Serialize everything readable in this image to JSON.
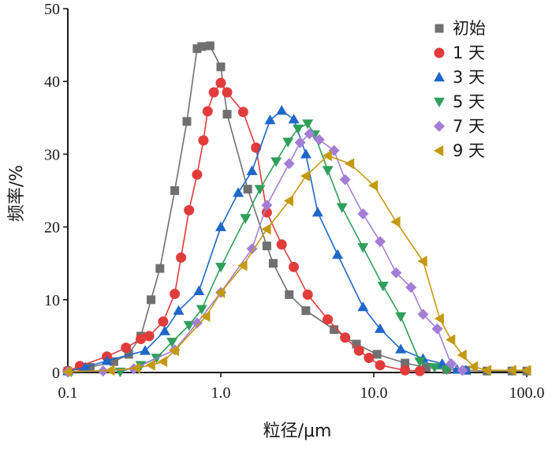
{
  "chart_data": {
    "type": "line",
    "xscale": "log",
    "xlabel": "粒径/μm",
    "ylabel": "频率/%",
    "xlim": [
      0.1,
      100
    ],
    "ylim": [
      0,
      50
    ],
    "xticks": [
      {
        "value": 0.1,
        "label": "0.1"
      },
      {
        "value": 1,
        "label": "1.0"
      },
      {
        "value": 10,
        "label": "10.0"
      },
      {
        "value": 100,
        "label": "100.0"
      }
    ],
    "yticks": [
      {
        "value": 0,
        "label": "0"
      },
      {
        "value": 10,
        "label": "10"
      },
      {
        "value": 20,
        "label": "20"
      },
      {
        "value": 30,
        "label": "30"
      },
      {
        "value": 40,
        "label": "40"
      },
      {
        "value": 50,
        "label": "50"
      }
    ],
    "grid": false,
    "legend_position": "top-right",
    "series": [
      {
        "name": "初始",
        "marker": "square",
        "color": "#707070",
        "points": [
          [
            0.1,
            0.2
          ],
          [
            0.14,
            0.7
          ],
          [
            0.2,
            1.5
          ],
          [
            0.25,
            2.5
          ],
          [
            0.3,
            5
          ],
          [
            0.35,
            10
          ],
          [
            0.4,
            14.3
          ],
          [
            0.5,
            25
          ],
          [
            0.6,
            34.5
          ],
          [
            0.7,
            44.5
          ],
          [
            0.75,
            44.8
          ],
          [
            0.85,
            44.9
          ],
          [
            1.0,
            42
          ],
          [
            1.1,
            35.5
          ],
          [
            1.5,
            25.2
          ],
          [
            2.0,
            17.4
          ],
          [
            2.2,
            15
          ],
          [
            2.8,
            10.7
          ],
          [
            3.6,
            8.5
          ],
          [
            5.5,
            5.9
          ],
          [
            7.7,
            3.9
          ],
          [
            10.5,
            2.5
          ],
          [
            16,
            1.3
          ],
          [
            22,
            0.7
          ],
          [
            30,
            0.4
          ],
          [
            40,
            0.3
          ],
          [
            55,
            0.2
          ],
          [
            80,
            0.2
          ],
          [
            100,
            0.2
          ]
        ]
      },
      {
        "name": "1 天",
        "marker": "circle",
        "color": "#e23b3b",
        "points": [
          [
            0.1,
            0.2
          ],
          [
            0.12,
            0.9
          ],
          [
            0.18,
            2.2
          ],
          [
            0.24,
            3.4
          ],
          [
            0.3,
            4.6
          ],
          [
            0.34,
            5
          ],
          [
            0.42,
            7
          ],
          [
            0.5,
            10.8
          ],
          [
            0.55,
            15.8
          ],
          [
            0.62,
            22.3
          ],
          [
            0.7,
            27.2
          ],
          [
            0.77,
            31.9
          ],
          [
            0.82,
            35.9
          ],
          [
            0.9,
            38.5
          ],
          [
            1.0,
            39.8
          ],
          [
            1.1,
            38.5
          ],
          [
            1.4,
            35.8
          ],
          [
            1.7,
            30.9
          ],
          [
            2.0,
            22
          ],
          [
            2.5,
            17.6
          ],
          [
            3.0,
            14.5
          ],
          [
            3.7,
            10.7
          ],
          [
            5.0,
            7.3
          ],
          [
            6.5,
            4.8
          ],
          [
            8,
            3
          ],
          [
            9.3,
            2
          ],
          [
            11,
            1
          ],
          [
            16,
            0.3
          ],
          [
            20,
            0.2
          ]
        ]
      },
      {
        "name": "3 天",
        "marker": "triangle-up",
        "color": "#1f67c9",
        "points": [
          [
            0.1,
            0.2
          ],
          [
            0.13,
            0.7
          ],
          [
            0.18,
            1.6
          ],
          [
            0.32,
            3
          ],
          [
            0.43,
            5.7
          ],
          [
            0.53,
            8.5
          ],
          [
            0.72,
            11.2
          ],
          [
            1.0,
            20
          ],
          [
            1.3,
            24.7
          ],
          [
            1.6,
            27.7
          ],
          [
            2.1,
            34.7
          ],
          [
            2.5,
            36
          ],
          [
            3.0,
            34.8
          ],
          [
            3.6,
            30
          ],
          [
            4.3,
            22
          ],
          [
            5.8,
            16.2
          ],
          [
            8.5,
            9
          ],
          [
            11,
            6
          ],
          [
            15,
            3.2
          ],
          [
            21,
            1.9
          ],
          [
            28,
            1.2
          ],
          [
            35,
            0.4
          ],
          [
            40,
            0.3
          ]
        ]
      },
      {
        "name": "5 天",
        "marker": "triangle-down",
        "color": "#2f9f5a",
        "points": [
          [
            0.22,
            0.1
          ],
          [
            0.3,
            1
          ],
          [
            0.38,
            2
          ],
          [
            0.48,
            4.2
          ],
          [
            0.62,
            6.5
          ],
          [
            0.75,
            8.7
          ],
          [
            1.0,
            14.5
          ],
          [
            1.45,
            21.2
          ],
          [
            1.8,
            25.2
          ],
          [
            2.3,
            29
          ],
          [
            2.75,
            31.7
          ],
          [
            3.2,
            33.5
          ],
          [
            3.7,
            34.2
          ],
          [
            4.1,
            32.7
          ],
          [
            5.0,
            27.8
          ],
          [
            6.2,
            22.7
          ],
          [
            8.5,
            17.2
          ],
          [
            11.5,
            11.9
          ],
          [
            15,
            7.7
          ],
          [
            20,
            1.5
          ],
          [
            25,
            0.7
          ],
          [
            30,
            0.4
          ]
        ]
      },
      {
        "name": "7 天",
        "marker": "diamond",
        "color": "#a47ed6",
        "points": [
          [
            0.1,
            0.1
          ],
          [
            0.17,
            0.2
          ],
          [
            0.27,
            0.5
          ],
          [
            0.5,
            3.1
          ],
          [
            0.7,
            6.8
          ],
          [
            1.0,
            11
          ],
          [
            1.6,
            17
          ],
          [
            2.0,
            23
          ],
          [
            2.8,
            28.7
          ],
          [
            3.3,
            31.6
          ],
          [
            3.8,
            32.8
          ],
          [
            4.4,
            32
          ],
          [
            5.5,
            30.5
          ],
          [
            6.5,
            26.5
          ],
          [
            8.5,
            21.8
          ],
          [
            11,
            18
          ],
          [
            14,
            13.7
          ],
          [
            17.5,
            11.7
          ],
          [
            21,
            8
          ],
          [
            26,
            6
          ],
          [
            32,
            1.2
          ],
          [
            38,
            0.3
          ]
        ]
      },
      {
        "name": "9 天",
        "marker": "triangle-left",
        "color": "#c49a12",
        "points": [
          [
            0.1,
            0.1
          ],
          [
            0.19,
            0.3
          ],
          [
            0.28,
            0.6
          ],
          [
            0.35,
            1
          ],
          [
            0.42,
            1.5
          ],
          [
            0.5,
            3
          ],
          [
            0.8,
            7.7
          ],
          [
            1.0,
            11
          ],
          [
            1.4,
            14.7
          ],
          [
            2.0,
            19.7
          ],
          [
            2.8,
            23.6
          ],
          [
            3.6,
            27
          ],
          [
            5.0,
            29.8
          ],
          [
            7,
            28.7
          ],
          [
            10,
            25.7
          ],
          [
            14,
            20.7
          ],
          [
            21,
            15.3
          ],
          [
            27,
            7.4
          ],
          [
            32,
            4.5
          ],
          [
            38,
            2.4
          ],
          [
            45,
            0.8
          ],
          [
            55,
            0.3
          ],
          [
            80,
            0.3
          ],
          [
            100,
            0.3
          ]
        ]
      }
    ]
  }
}
